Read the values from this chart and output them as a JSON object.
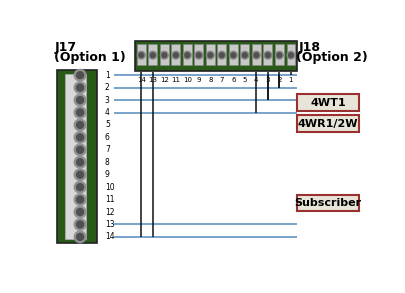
{
  "bg_color": "#ffffff",
  "j17_label_line1": "J17",
  "j17_label_line2": "(Option 1)",
  "j18_label_line1": "J18",
  "j18_label_line2": "(Option 2)",
  "j17_pins": 14,
  "j18_pins": 14,
  "box_labels": [
    "4WT1",
    "4WR1/2W",
    "Subscriber"
  ],
  "box_border_color": "#9b3030",
  "box_face_color": "#e8e5d8",
  "line_blue": "#5588bb",
  "line_black": "#111111",
  "j17_connector_color": "#2a5a18",
  "j18_connector_color": "#2a5a18"
}
